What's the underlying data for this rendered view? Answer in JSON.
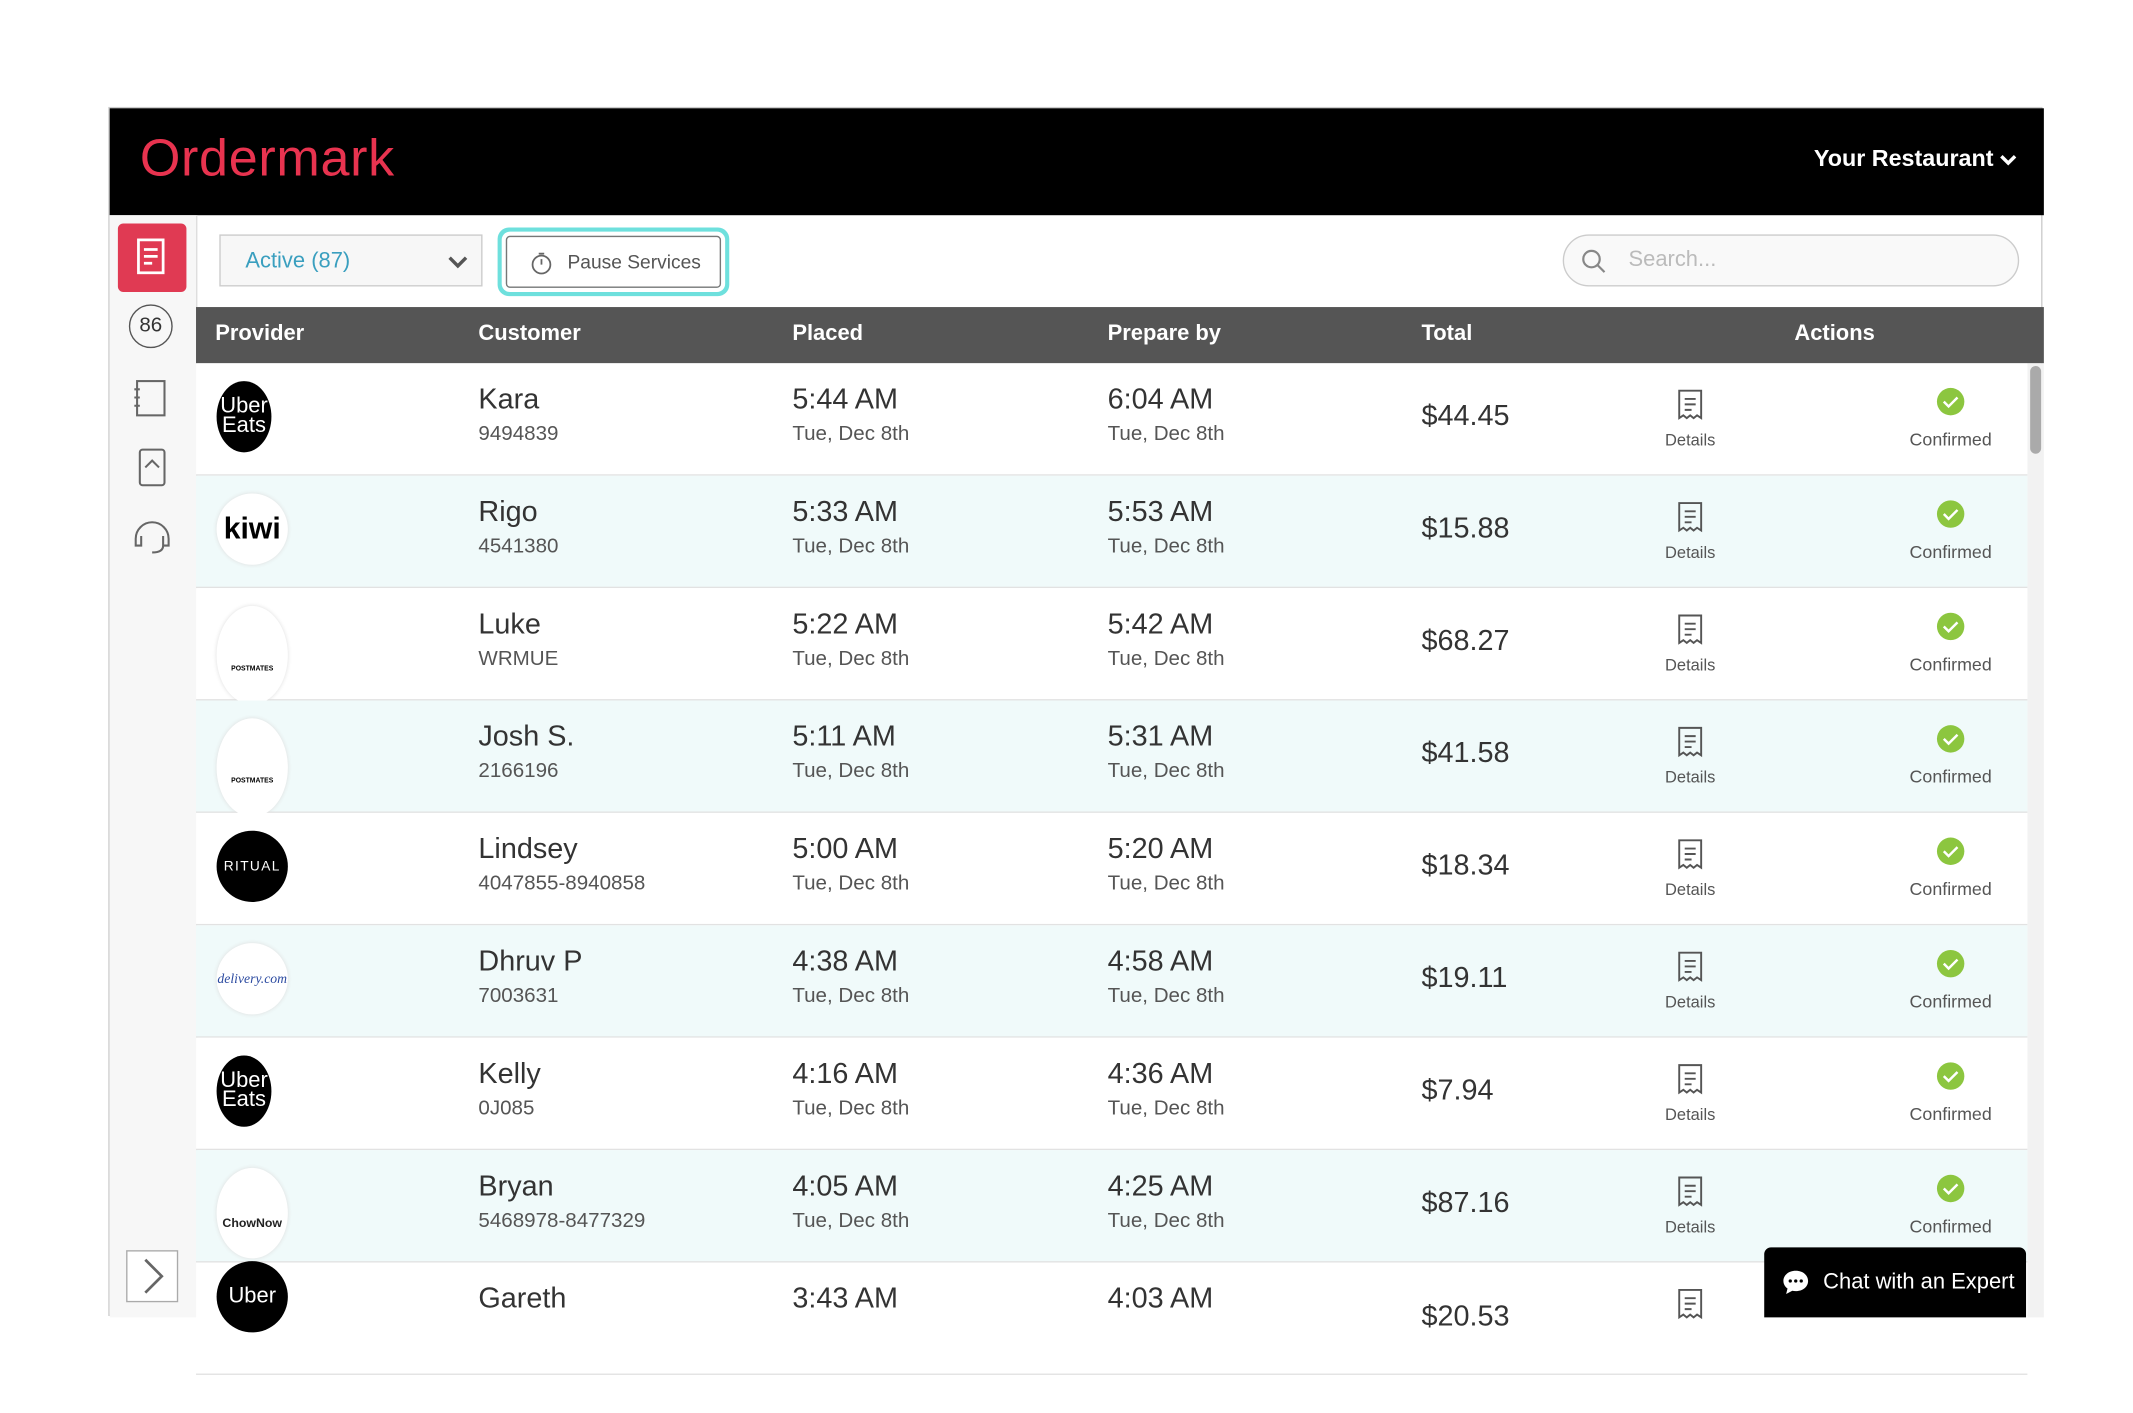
{
  "header": {
    "brand": "Ordermark",
    "restaurant": "Your Restaurant"
  },
  "sidebar": {
    "badge": "86"
  },
  "toolbar": {
    "filter": "Active (87)",
    "pause": "Pause Services",
    "search": "Search..."
  },
  "table": {
    "columns": [
      "Provider",
      "Customer",
      "Placed",
      "Prepare by",
      "Total",
      "Actions"
    ],
    "rows": [
      {
        "provider": "Uber Eats",
        "customer": "Kara",
        "id": "9494839",
        "placed": "5:44 AM",
        "placed_date": "Tue, Dec 8th",
        "prepare": "6:04 AM",
        "prepare_date": "Tue, Dec 8th",
        "total": "$44.45",
        "details": "Details",
        "status": "Confirmed"
      },
      {
        "provider": "kiwi",
        "customer": "Rigo",
        "id": "4541380",
        "placed": "5:33 AM",
        "placed_date": "Tue, Dec 8th",
        "prepare": "5:53 AM",
        "prepare_date": "Tue, Dec 8th",
        "total": "$15.88",
        "details": "Details",
        "status": "Confirmed"
      },
      {
        "provider": "POSTMATES",
        "customer": "Luke",
        "id": "WRMUE",
        "placed": "5:22 AM",
        "placed_date": "Tue, Dec 8th",
        "prepare": "5:42 AM",
        "prepare_date": "Tue, Dec 8th",
        "total": "$68.27",
        "details": "Details",
        "status": "Confirmed"
      },
      {
        "provider": "POSTMATES",
        "customer": "Josh S.",
        "id": "2166196",
        "placed": "5:11 AM",
        "placed_date": "Tue, Dec 8th",
        "prepare": "5:31 AM",
        "prepare_date": "Tue, Dec 8th",
        "total": "$41.58",
        "details": "Details",
        "status": "Confirmed"
      },
      {
        "provider": "RITUAL",
        "customer": "Lindsey",
        "id": "4047855-8940858",
        "placed": "5:00 AM",
        "placed_date": "Tue, Dec 8th",
        "prepare": "5:20 AM",
        "prepare_date": "Tue, Dec 8th",
        "total": "$18.34",
        "details": "Details",
        "status": "Confirmed"
      },
      {
        "provider": "delivery.com",
        "customer": "Dhruv P",
        "id": "7003631",
        "placed": "4:38 AM",
        "placed_date": "Tue, Dec 8th",
        "prepare": "4:58 AM",
        "prepare_date": "Tue, Dec 8th",
        "total": "$19.11",
        "details": "Details",
        "status": "Confirmed"
      },
      {
        "provider": "Uber Eats",
        "customer": "Kelly",
        "id": "0J085",
        "placed": "4:16 AM",
        "placed_date": "Tue, Dec 8th",
        "prepare": "4:36 AM",
        "prepare_date": "Tue, Dec 8th",
        "total": "$7.94",
        "details": "Details",
        "status": "Confirmed"
      },
      {
        "provider": "ChowNow",
        "customer": "Bryan",
        "id": "5468978-8477329",
        "placed": "4:05 AM",
        "placed_date": "Tue, Dec 8th",
        "prepare": "4:25 AM",
        "prepare_date": "Tue, Dec 8th",
        "total": "$87.16",
        "details": "Details",
        "status": "Confirmed"
      },
      {
        "provider": "Uber",
        "customer": "Gareth",
        "placed": "3:43 AM",
        "prepare": "4:03 AM",
        "total": "$20.53"
      }
    ]
  },
  "chat": "Chat with an Expert"
}
